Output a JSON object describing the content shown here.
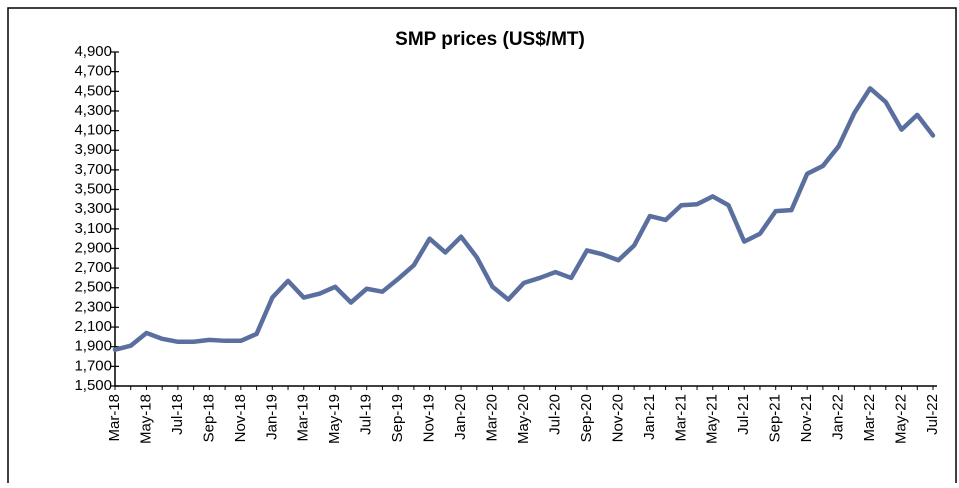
{
  "chart_data": {
    "type": "line",
    "title": "SMP prices (US$/MT)",
    "color": "#5b6f9f",
    "categories": [
      "Mar-18",
      null,
      "May-18",
      null,
      "Jul-18",
      null,
      "Sep-18",
      null,
      "Nov-18",
      null,
      "Jan-19",
      null,
      "Mar-19",
      null,
      "May-19",
      null,
      "Jul-19",
      null,
      "Sep-19",
      null,
      "Nov-19",
      null,
      "Jan-20",
      null,
      "Mar-20",
      null,
      "May-20",
      null,
      "Jul-20",
      null,
      "Sep-20",
      null,
      "Nov-20",
      null,
      "Jan-21",
      null,
      "Mar-21",
      null,
      "May-21",
      null,
      "Jul-21",
      null,
      "Sep-21",
      null,
      "Nov-21",
      null,
      "Jan-22",
      null,
      "Mar-22",
      null,
      "May-22",
      null,
      "Jul-22"
    ],
    "values": [
      1870,
      1910,
      2040,
      1980,
      1950,
      1950,
      1970,
      1960,
      1960,
      2030,
      2400,
      2570,
      2400,
      2440,
      2510,
      2350,
      2490,
      2460,
      2590,
      2730,
      3000,
      2860,
      3020,
      2810,
      2510,
      2380,
      2550,
      2600,
      2660,
      2600,
      2880,
      2840,
      2780,
      2930,
      3230,
      3190,
      3340,
      3350,
      3430,
      3340,
      2970,
      3050,
      3280,
      3290,
      3660,
      3740,
      3940,
      4280,
      4530,
      4390,
      4110,
      4260,
      4050
    ],
    "ylim": [
      1500,
      4900
    ],
    "yticks": [
      {
        "value": 1500,
        "label": "1,500"
      },
      {
        "value": 1700,
        "label": "1,700"
      },
      {
        "value": 1900,
        "label": "1,900"
      },
      {
        "value": 2100,
        "label": "2,100"
      },
      {
        "value": 2300,
        "label": "2,300"
      },
      {
        "value": 2500,
        "label": "2,500"
      },
      {
        "value": 2700,
        "label": "2,700"
      },
      {
        "value": 2900,
        "label": "2,900"
      },
      {
        "value": 3100,
        "label": "3,100"
      },
      {
        "value": 3300,
        "label": "3,300"
      },
      {
        "value": 3500,
        "label": "3,500"
      },
      {
        "value": 3700,
        "label": "3,700"
      },
      {
        "value": 3900,
        "label": "3,900"
      },
      {
        "value": 4100,
        "label": "4,100"
      },
      {
        "value": 4300,
        "label": "4,300"
      },
      {
        "value": 4500,
        "label": "4,500"
      },
      {
        "value": 4700,
        "label": "4,700"
      },
      {
        "value": 4900,
        "label": "4,900"
      }
    ],
    "grid": false
  }
}
